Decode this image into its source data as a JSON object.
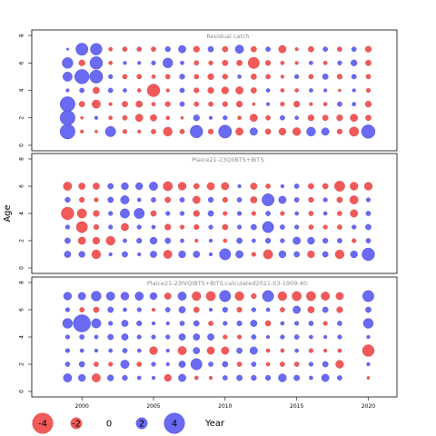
{
  "chart_data": {
    "type": "scatter",
    "subtype": "bubble-residuals",
    "ylabel": "Age",
    "xlim": [
      1996.5,
      2022
    ],
    "ylim": [
      -0.4,
      8.4
    ],
    "x_ticks": [
      2000,
      2005,
      2010,
      2015,
      2020
    ],
    "y_ticks": [
      0,
      2,
      4,
      6,
      8
    ],
    "years": [
      1999,
      2000,
      2001,
      2002,
      2003,
      2004,
      2005,
      2006,
      2007,
      2008,
      2009,
      2010,
      2011,
      2012,
      2013,
      2014,
      2015,
      2016,
      2017,
      2018,
      2019,
      2020
    ],
    "ages": [
      1,
      2,
      3,
      4,
      5,
      6,
      7
    ],
    "colors": {
      "positive": "#6a6af2",
      "negative": "#f25a5a",
      "edge_positive": "#3c3cc8",
      "edge_negative": "#c83c3c"
    },
    "legend": {
      "items": [
        {
          "label": "-4",
          "value": -4
        },
        {
          "label": "-2",
          "value": -2
        },
        {
          "label": "0",
          "value": 0
        },
        {
          "label": "2",
          "value": 2
        },
        {
          "label": "4",
          "value": 4
        }
      ],
      "xlabel": "Year"
    },
    "panels": [
      {
        "title": "Residual catch",
        "values": [
          [
            2.8,
            -0.3,
            -0.2,
            1.8,
            -0.5,
            -0.3,
            -0.6,
            -1.5,
            -0.6,
            2.3,
            -0.7,
            2.4,
            -1.2,
            1.2,
            -0.8,
            -1.1,
            -1.3,
            1.5,
            1.2,
            -0.7,
            -1.6,
            2.5
          ],
          [
            2.8,
            -0.2,
            0.3,
            -0.4,
            -0.6,
            -1.2,
            -1.0,
            -0.4,
            -0.2,
            0.9,
            0.3,
            0.5,
            -0.4,
            -1.2,
            -0.6,
            0.6,
            0.4,
            -0.9,
            -0.8,
            -0.9,
            -1.2,
            -0.8
          ],
          [
            2.8,
            -0.8,
            -1.4,
            -0.3,
            -0.8,
            -1.0,
            -0.4,
            -0.7,
            0.6,
            -0.6,
            -0.6,
            -0.7,
            -0.9,
            -0.2,
            0.3,
            -0.5,
            -0.9,
            -0.3,
            -0.4,
            0.6,
            0.4,
            -0.9
          ],
          [
            0.3,
            0.6,
            -1.0,
            0.6,
            0.4,
            -0.4,
            -2.3,
            -0.3,
            0.6,
            -0.7,
            -0.9,
            -1.1,
            -1.2,
            -0.8,
            0.4,
            -0.4,
            -0.4,
            0.4,
            0.3,
            -0.2,
            0.3,
            -0.5
          ],
          [
            1.6,
            2.7,
            2.4,
            0.5,
            -0.6,
            -0.6,
            -0.4,
            -0.6,
            0.7,
            -0.6,
            -0.9,
            -0.7,
            0.4,
            -0.8,
            -0.6,
            -0.3,
            0.5,
            -0.6,
            0.8,
            -0.7,
            0.6,
            -0.6
          ],
          [
            1.9,
            -0.9,
            2.3,
            -0.4,
            0.3,
            0.3,
            0.5,
            1.7,
            0.4,
            -0.6,
            -0.5,
            -0.8,
            -0.8,
            -2.0,
            -0.7,
            -0.4,
            -0.3,
            0.4,
            -0.4,
            0.5,
            0.9,
            -0.8
          ],
          [
            0.1,
            2.2,
            2.1,
            -0.4,
            -0.6,
            -0.6,
            -0.6,
            0.7,
            1.2,
            -0.9,
            0.8,
            -0.8,
            1.4,
            -0.8,
            0.6,
            -1.2,
            -0.3,
            -0.8,
            0.6,
            -0.6,
            0.6,
            -0.9
          ]
        ]
      },
      {
        "title": "Plaice21-23QIIBTS+BITS",
        "values": [
          [
            1.0,
            0.9,
            -1.5,
            0.3,
            0.8,
            0.3,
            1.0,
            -1.4,
            1.1,
            1.0,
            0.3,
            2.0,
            1.2,
            -0.5,
            -1.6,
            1.1,
            0.8,
            -1.1,
            0.8,
            -1.5,
            1.1,
            2.3
          ],
          [
            0.8,
            -1.2,
            -1.1,
            -1.5,
            0.4,
            0.7,
            1.1,
            0.8,
            0.4,
            -0.3,
            0.3,
            -0.4,
            0.8,
            0.4,
            0.7,
            0.5,
            1.2,
            1.1,
            0.7,
            0.6,
            -0.5,
            0.6
          ],
          [
            0.5,
            -2.0,
            -0.7,
            0.5,
            -1.2,
            0.5,
            0.4,
            -0.9,
            -0.5,
            -0.7,
            0.5,
            -0.8,
            0.5,
            0.8,
            2.0,
            0.6,
            0.5,
            -0.6,
            -0.5,
            -0.6,
            0.5,
            0.8
          ],
          [
            -2.3,
            -1.6,
            -0.9,
            0.5,
            1.6,
            1.8,
            -0.8,
            0.5,
            0.5,
            -0.9,
            0.8,
            -0.5,
            0.5,
            -0.5,
            0.6,
            -0.5,
            0.4,
            -0.6,
            0.4,
            -0.6,
            -1.2,
            0.6
          ],
          [
            0.7,
            -0.7,
            -0.5,
            0.8,
            1.4,
            0.4,
            0.6,
            -0.8,
            0.6,
            -1.2,
            0.7,
            -0.7,
            0.6,
            -1.0,
            2.2,
            1.2,
            0.6,
            -0.7,
            0.5,
            -0.8,
            -1.4,
            0.5
          ],
          [
            -1.4,
            -1.0,
            -1.0,
            0.8,
            1.1,
            1.1,
            1.4,
            -1.6,
            -1.3,
            -0.8,
            -1.2,
            -1.2,
            0.3,
            -1.0,
            -0.6,
            0.3,
            0.6,
            -0.8,
            -0.8,
            -1.8,
            -1.3,
            -1.3
          ]
        ]
      },
      {
        "title": "Plaice21-23IVQIBTS+BITS;calculated2021-03-1909:40:",
        "values": [
          [
            1.4,
            1.1,
            -1.4,
            0.9,
            0.7,
            0.4,
            0.3,
            -1.1,
            1.2,
            -0.4,
            -0.3,
            0.6,
            0.8,
            0.7,
            0.7,
            1.3,
            0.8,
            0.4,
            1.2,
            0.6,
            null,
            -0.2
          ],
          [
            0.6,
            0.8,
            -0.6,
            -0.5,
            1.4,
            -0.6,
            0.5,
            0.3,
            1.0,
            2.0,
            0.6,
            0.8,
            -0.6,
            0.6,
            -0.4,
            -0.6,
            -0.6,
            0.5,
            0.8,
            -1.3,
            null,
            0.3
          ],
          [
            0.5,
            0.4,
            0.3,
            0.4,
            0.6,
            0.4,
            -1.3,
            0.3,
            -1.4,
            1.0,
            -1.2,
            -1.2,
            0.8,
            1.2,
            -0.4,
            -0.4,
            0.4,
            -0.5,
            -0.3,
            -0.4,
            null,
            -2.1
          ],
          [
            0.5,
            0.6,
            0.4,
            0.8,
            1.0,
            0.5,
            0.5,
            0.5,
            1.0,
            1.0,
            1.0,
            -0.5,
            -0.5,
            0.6,
            0.3,
            0.5,
            0.6,
            0.4,
            0.3,
            0.5,
            null,
            0.3
          ],
          [
            1.7,
            3.3,
            1.6,
            0.5,
            1.0,
            0.7,
            0.3,
            0.3,
            0.6,
            0.8,
            -0.6,
            0.5,
            0.7,
            1.0,
            -0.8,
            0.4,
            0.5,
            0.6,
            -0.5,
            0.6,
            null,
            1.7
          ],
          [
            0.5,
            -0.6,
            -0.8,
            0.8,
            0.4,
            0.5,
            -0.3,
            0.6,
            1.0,
            -0.8,
            0.3,
            0.7,
            -0.7,
            0.5,
            0.4,
            -0.6,
            1.2,
            -1.0,
            0.8,
            -0.9,
            null,
            0.8
          ],
          [
            1.3,
            1.2,
            1.7,
            1.4,
            1.3,
            1.4,
            1.1,
            -1.0,
            1.4,
            -1.5,
            -1.6,
            2.0,
            -1.5,
            -0.7,
            2.0,
            -1.5,
            -1.6,
            -1.6,
            -1.4,
            -1.2,
            null,
            2.0
          ]
        ]
      }
    ]
  }
}
